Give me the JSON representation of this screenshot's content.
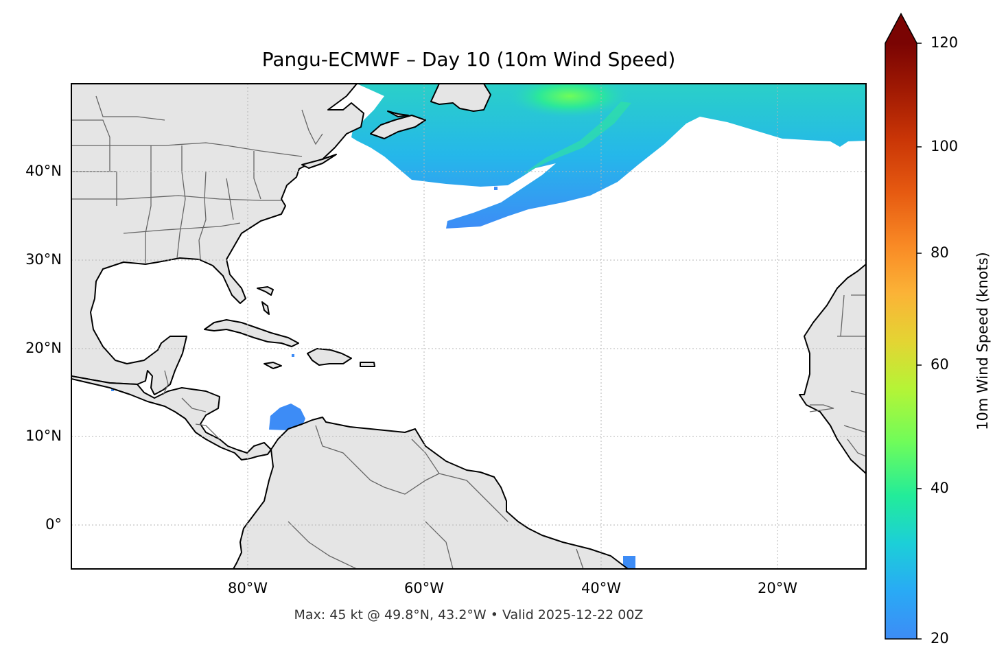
{
  "title": "Pangu-ECMWF – Day 10 (10m Wind Speed)",
  "footer": "Max: 45 kt @ 49.8°N, 43.2°W • Valid 2025-12-22 00Z",
  "map": {
    "projection": "PlateCarree",
    "lon_range": [
      -100,
      -10
    ],
    "lat_range": [
      -5,
      50
    ],
    "gridlines": "dotted",
    "lat_ticks": [
      "40°N",
      "30°N",
      "20°N",
      "10°N",
      "0°"
    ],
    "lon_ticks": [
      "80°W",
      "60°W",
      "40°W",
      "20°W"
    ],
    "land_color": "#e5e5e5",
    "coastline_color": "#000000",
    "border_color": "#666666"
  },
  "colorbar": {
    "label": "10m Wind Speed (knots)",
    "ticks": [
      "20",
      "40",
      "60",
      "80",
      "100",
      "120"
    ],
    "range": [
      20,
      120
    ],
    "extend": "max",
    "colormap": "turbo"
  },
  "wind_max": {
    "value_kt": 45,
    "lat": 49.8,
    "lon": -43.2
  }
}
